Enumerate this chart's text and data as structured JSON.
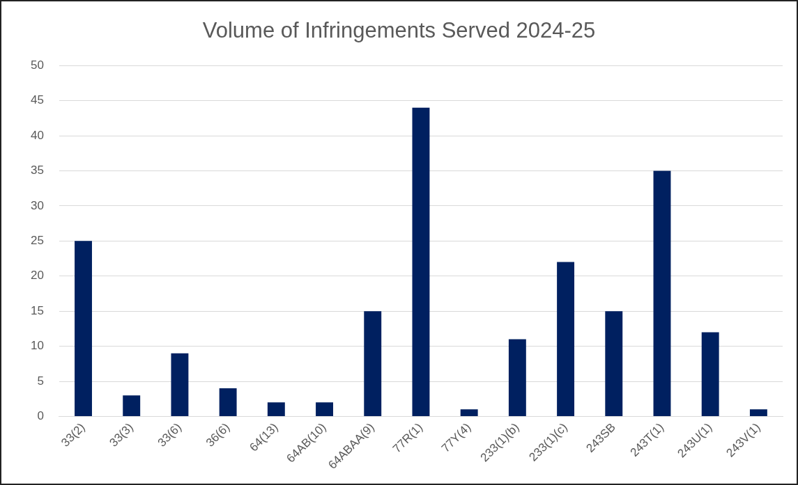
{
  "chart_data": {
    "type": "bar",
    "title": "Volume of Infringements Served 2024-25",
    "categories": [
      "33(2)",
      "33(3)",
      "33(6)",
      "36(6)",
      "64(13)",
      "64AB(10)",
      "64ABAA(9)",
      "77R(1)",
      "77Y(4)",
      "233(1)(b)",
      "233(1)(c)",
      "243SB",
      "243T(1)",
      "243U(1)",
      "243V(1)"
    ],
    "values": [
      25,
      3,
      9,
      4,
      2,
      2,
      15,
      44,
      1,
      11,
      22,
      15,
      35,
      12,
      1
    ],
    "color": "#002060",
    "ylim": [
      0,
      50
    ],
    "yticks": [
      0,
      5,
      10,
      15,
      20,
      25,
      30,
      35,
      40,
      45,
      50
    ],
    "grid": "y",
    "legend": false
  }
}
